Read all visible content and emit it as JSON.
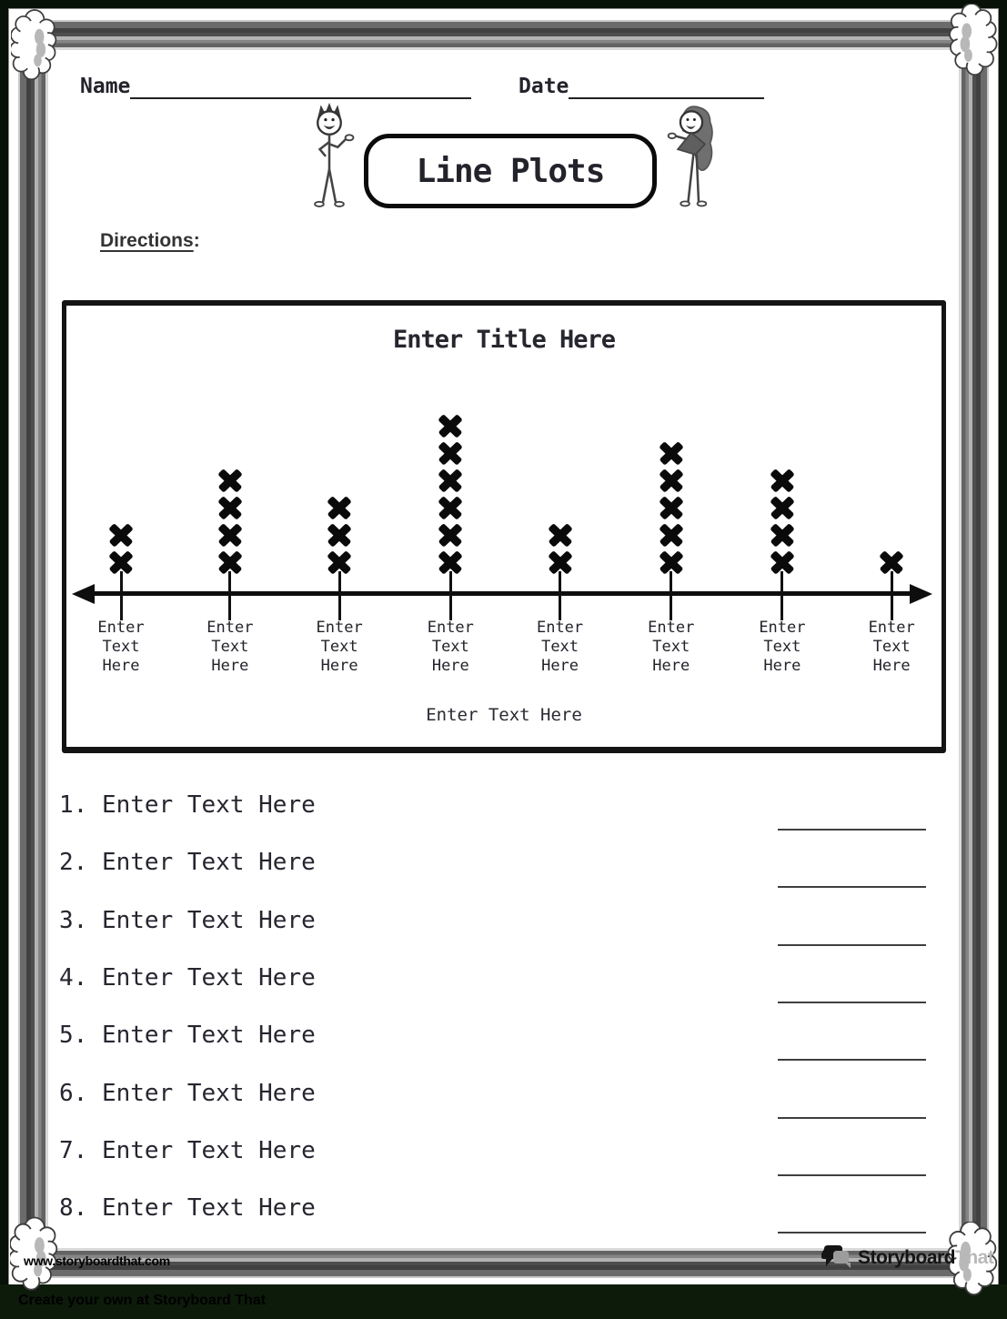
{
  "header": {
    "name_label": "Name",
    "date_label": "Date",
    "banner_title": "Line Plots",
    "directions_label": "Directions",
    "directions_punct": ":"
  },
  "chart_data": {
    "type": "line_plot",
    "title": "Enter Title Here",
    "marker": "heavy-x",
    "categories": [
      "Enter Text Here",
      "Enter Text Here",
      "Enter Text Here",
      "Enter Text Here",
      "Enter Text Here",
      "Enter Text Here",
      "Enter Text Here",
      "Enter Text Here"
    ],
    "values": [
      2,
      4,
      3,
      6,
      2,
      5,
      4,
      1
    ],
    "xlabel": "Enter Text Here",
    "ylim": [
      0,
      6
    ],
    "axis_style": "number line with arrowheads on both ends",
    "grid": false,
    "legend": false
  },
  "questions": [
    {
      "number": "1.",
      "text": "Enter Text Here"
    },
    {
      "number": "2.",
      "text": "Enter Text Here"
    },
    {
      "number": "3.",
      "text": "Enter Text Here"
    },
    {
      "number": "4.",
      "text": "Enter Text Here"
    },
    {
      "number": "5.",
      "text": "Enter Text Here"
    },
    {
      "number": "6.",
      "text": "Enter Text Here"
    },
    {
      "number": "7.",
      "text": "Enter Text Here"
    },
    {
      "number": "8.",
      "text": "Enter Text Here"
    }
  ],
  "footer": {
    "website": "www.storyboardthat.com",
    "logo_part1": "Storyboard",
    "logo_part2": "That",
    "bottom_bar_text": "Create your own at Storyboard That"
  },
  "colors": {
    "ink": "#26262e",
    "marker": "#0a0a0a",
    "frame_background": "#081107",
    "bottom_bar": "#0d1b0b",
    "blank_line": "#3f3f3f"
  }
}
